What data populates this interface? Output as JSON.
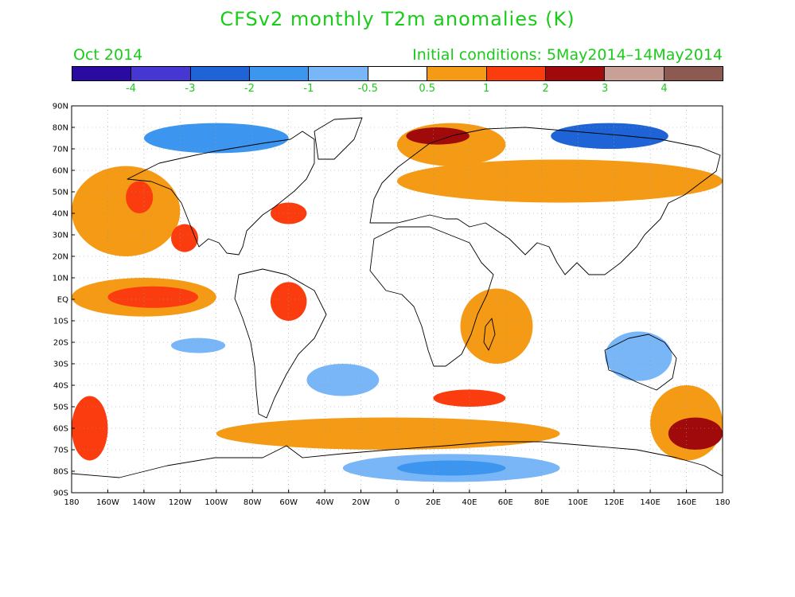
{
  "title": "CFSv2 monthly T2m anomalies (K)",
  "subtitle_left": "Oct 2014",
  "subtitle_right": "Initial conditions: 5May2014–14May2014",
  "colors": {
    "title_green": "#19cc19",
    "land_outline": "#000000",
    "grid": "#9a9a9a"
  },
  "colorbar": {
    "colors": [
      "#2a0aa0",
      "#4636d2",
      "#1e64d6",
      "#3c96f0",
      "#78b6f8",
      "#ffffff",
      "#f59a14",
      "#fa3c0f",
      "#a00a0a",
      "#c8a096",
      "#8c5a50"
    ],
    "labels": [
      "-4",
      "-3",
      "-2",
      "-1",
      "-0.5",
      "0.5",
      "1",
      "2",
      "3",
      "4"
    ]
  },
  "axes": {
    "lat_labels": [
      "90N",
      "80N",
      "70N",
      "60N",
      "50N",
      "40N",
      "30N",
      "20N",
      "10N",
      "EQ",
      "10S",
      "20S",
      "30S",
      "40S",
      "50S",
      "60S",
      "70S",
      "80S",
      "90S"
    ],
    "lon_labels": [
      "180",
      "160W",
      "140W",
      "120W",
      "100W",
      "80W",
      "60W",
      "40W",
      "20W",
      "0",
      "20E",
      "40E",
      "60E",
      "80E",
      "100E",
      "120E",
      "140E",
      "160E",
      "180"
    ]
  },
  "anomaly_regions": [
    {
      "name": "arctic-asia-warm",
      "lon": [
        0,
        60
      ],
      "lat": [
        62,
        82
      ],
      "level": 0.75
    },
    {
      "name": "arctic-siberia-warm-core",
      "lon": [
        5,
        40
      ],
      "lat": [
        72,
        80
      ],
      "level": 2.5
    },
    {
      "name": "arctic-canada-cool",
      "lon": [
        -140,
        -60
      ],
      "lat": [
        68,
        82
      ],
      "level": -1.5
    },
    {
      "name": "arctic-east-siberia-cool",
      "lon": [
        85,
        150
      ],
      "lat": [
        70,
        82
      ],
      "level": -2.5
    },
    {
      "name": "north-pacific-warm",
      "lon": [
        -180,
        -120
      ],
      "lat": [
        20,
        62
      ],
      "level": 0.75
    },
    {
      "name": "gulf-alaska-warm",
      "lon": [
        -150,
        -135
      ],
      "lat": [
        40,
        55
      ],
      "level": 1.5
    },
    {
      "name": "baja-warm",
      "lon": [
        -125,
        -110
      ],
      "lat": [
        22,
        35
      ],
      "level": 1.5
    },
    {
      "name": "north-atlantic-warm",
      "lon": [
        -70,
        -50
      ],
      "lat": [
        35,
        45
      ],
      "level": 1.5
    },
    {
      "name": "eurasia-warm",
      "lon": [
        0,
        180
      ],
      "lat": [
        45,
        65
      ],
      "level": 0.75
    },
    {
      "name": "east-pacific-equatorial-warm",
      "lon": [
        -180,
        -100
      ],
      "lat": [
        -8,
        10
      ],
      "level": 0.75
    },
    {
      "name": "enso-warm-core",
      "lon": [
        -160,
        -110
      ],
      "lat": [
        -4,
        6
      ],
      "level": 1.5
    },
    {
      "name": "amazon-warm",
      "lon": [
        -70,
        -50
      ],
      "lat": [
        -10,
        8
      ],
      "level": 1.5
    },
    {
      "name": "south-atlantic-cool",
      "lon": [
        -50,
        -10
      ],
      "lat": [
        -45,
        -30
      ],
      "level": -1
    },
    {
      "name": "south-pacific-cool",
      "lon": [
        -125,
        -95
      ],
      "lat": [
        -25,
        -18
      ],
      "level": -0.75
    },
    {
      "name": "australia-cool",
      "lon": [
        115,
        152
      ],
      "lat": [
        -38,
        -15
      ],
      "level": -0.75
    },
    {
      "name": "indian-ocean-warm",
      "lon": [
        35,
        75
      ],
      "lat": [
        -30,
        5
      ],
      "level": 0.75
    },
    {
      "name": "southern-ocean-warm-east",
      "lon": [
        140,
        180
      ],
      "lat": [
        -75,
        -40
      ],
      "level": 0.75
    },
    {
      "name": "southern-ocean-warm-core-east",
      "lon": [
        150,
        180
      ],
      "lat": [
        -70,
        -55
      ],
      "level": 2
    },
    {
      "name": "southern-ocean-warm-west",
      "lon": [
        -180,
        -160
      ],
      "lat": [
        -75,
        -45
      ],
      "level": 1.5
    },
    {
      "name": "southern-ocean-belt",
      "lon": [
        -100,
        90
      ],
      "lat": [
        -70,
        -55
      ],
      "level": 0.75
    },
    {
      "name": "southern-ocean-warm-mid",
      "lon": [
        20,
        60
      ],
      "lat": [
        -50,
        -42
      ],
      "level": 1.5
    },
    {
      "name": "antarctica-cool",
      "lon": [
        -30,
        90
      ],
      "lat": [
        -85,
        -72
      ],
      "level": -1
    },
    {
      "name": "antarctica-cool-core",
      "lon": [
        0,
        60
      ],
      "lat": [
        -82,
        -75
      ],
      "level": -1.5
    }
  ]
}
